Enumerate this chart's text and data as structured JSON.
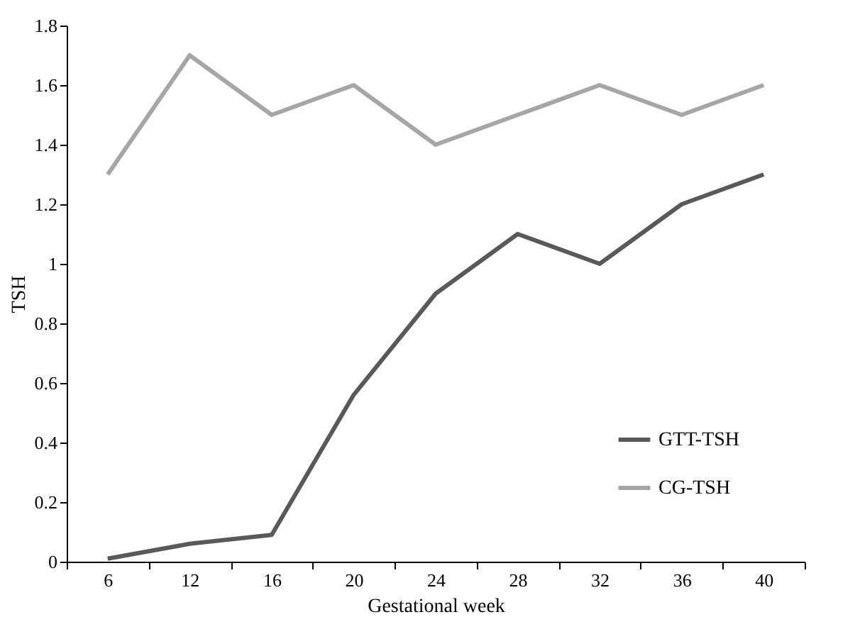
{
  "chart_data": {
    "type": "line",
    "xlabel": "Gestational week",
    "ylabel": "TSH",
    "categories": [
      "6",
      "12",
      "16",
      "20",
      "24",
      "28",
      "32",
      "36",
      "40"
    ],
    "series": [
      {
        "name": "GTT-TSH",
        "color": "#595959",
        "values": [
          0.01,
          0.06,
          0.09,
          0.56,
          0.9,
          1.1,
          1.0,
          1.2,
          1.3
        ]
      },
      {
        "name": "CG-TSH",
        "color": "#a6a6a6",
        "values": [
          1.3,
          1.7,
          1.5,
          1.6,
          1.4,
          1.5,
          1.6,
          1.5,
          1.6
        ]
      }
    ],
    "ylim": [
      0,
      1.8
    ],
    "yticks": [
      0,
      0.2,
      0.4,
      0.6,
      0.8,
      1,
      1.2,
      1.4,
      1.6,
      1.8
    ],
    "grid": false,
    "legend": "bottom right",
    "marker": "none",
    "line_style": "solid"
  }
}
